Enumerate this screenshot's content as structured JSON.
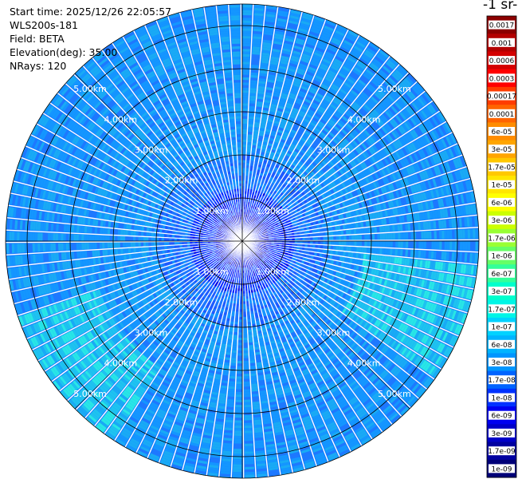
{
  "header": {
    "start_time": "Start time: 2025/12/26 22:05:57",
    "instrument": "WLS200s-181",
    "field": "Field: BETA",
    "elevation": "Elevation(deg): 35.00",
    "nrays": "NRays: 120"
  },
  "colorbar": {
    "title": "-1 sr-",
    "labels": [
      "0.0017",
      "0.001",
      "0.0006",
      "0.0003",
      "0.00017",
      "0.0001",
      "6e-05",
      "3e-05",
      "1.7e-05",
      "1e-05",
      "6e-06",
      "3e-06",
      "1.7e-06",
      "1e-06",
      "6e-07",
      "3e-07",
      "1.7e-07",
      "1e-07",
      "6e-08",
      "3e-08",
      "1.7e-08",
      "1e-08",
      "6e-09",
      "3e-09",
      "1.7e-09",
      "1e-09"
    ],
    "colors": [
      "#8b0000",
      "#b30000",
      "#d40000",
      "#ff0000",
      "#ff3c00",
      "#ff6400",
      "#ff8c00",
      "#ffa500",
      "#ffc800",
      "#ffe600",
      "#ffff00",
      "#ccff00",
      "#99ff33",
      "#66ff66",
      "#33ff99",
      "#00ffcc",
      "#00f5e6",
      "#00d2ff",
      "#00b4ff",
      "#0096ff",
      "#0064ff",
      "#0032ff",
      "#0000f0",
      "#0000c8",
      "#0000a0",
      "#000078"
    ]
  },
  "chart_data": {
    "type": "heatmap",
    "projection": "polar PPI scan",
    "field": "BETA",
    "elevation_deg": 35.0,
    "n_rays": 120,
    "range_rings_km": [
      1,
      2,
      3,
      4,
      5
    ],
    "ring_labels": [
      "1.00km",
      "2.00km",
      "3.00km",
      "4.00km",
      "5.00km"
    ],
    "max_range_km": 5.5,
    "scale": "log",
    "value_range": [
      1e-09,
      0.0017
    ],
    "dominant_values_note": "mostly 3e-08 to 1e-07 (blue), center 1e-09 to 1e-08 (dark blue), patches up to 3e-07 (cyan)"
  }
}
